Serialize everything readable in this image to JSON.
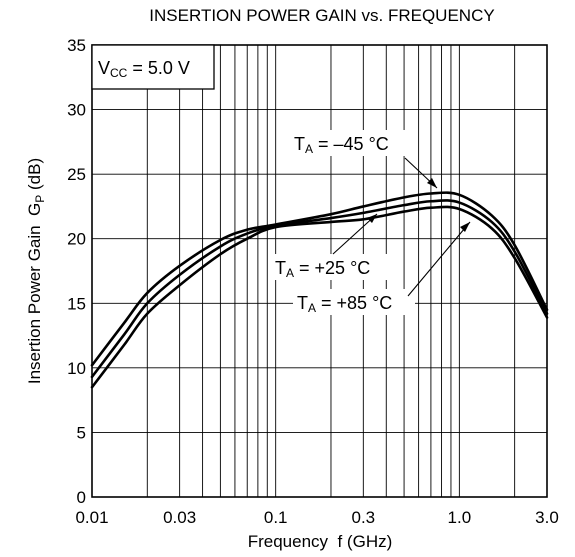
{
  "chart_data": {
    "type": "line",
    "title": "INSERTION POWER GAIN vs. FREQUENCY",
    "xlabel": "Frequency  f (GHz)",
    "ylabel": {
      "main": "Insertion Power Gain  G",
      "sub": "P",
      "unit": " (dB)"
    },
    "xscale": "log",
    "xlim": [
      0.01,
      3.0
    ],
    "ylim": [
      0,
      35
    ],
    "x_tick_values": [
      0.01,
      0.03,
      0.1,
      0.3,
      1.0,
      3.0
    ],
    "x_tick_labels": [
      "0.01",
      "0.03",
      "0.1",
      "0.3",
      "1.0",
      "3.0"
    ],
    "x_grid_values": [
      0.01,
      0.02,
      0.03,
      0.04,
      0.05,
      0.06,
      0.07,
      0.08,
      0.09,
      0.1,
      0.2,
      0.3,
      0.4,
      0.5,
      0.6,
      0.7,
      0.8,
      0.9,
      1.0,
      2.0,
      3.0
    ],
    "y_tick_values": [
      0,
      5,
      10,
      15,
      20,
      25,
      30,
      35
    ],
    "y_tick_labels": [
      "0",
      "5",
      "10",
      "15",
      "20",
      "25",
      "30",
      "35"
    ],
    "grid": true,
    "condition": {
      "pre": "V",
      "sub": "CC",
      "post": " = 5.0 V"
    },
    "series": [
      {
        "name": "TA = −45 °C",
        "label": {
          "pre": "T",
          "sub": "A",
          "post": " = –45 °C"
        },
        "x": [
          0.01,
          0.015,
          0.02,
          0.03,
          0.05,
          0.07,
          0.1,
          0.2,
          0.3,
          0.5,
          0.7,
          1.0,
          1.5,
          2.0,
          3.0
        ],
        "y": [
          10.2,
          13.5,
          15.8,
          17.9,
          19.9,
          20.7,
          21.1,
          21.9,
          22.5,
          23.2,
          23.5,
          23.4,
          21.8,
          19.5,
          14.5
        ]
      },
      {
        "name": "TA = +25 °C",
        "label": {
          "pre": "T",
          "sub": "A",
          "post": " = +25 °C"
        },
        "x": [
          0.01,
          0.015,
          0.02,
          0.03,
          0.05,
          0.07,
          0.1,
          0.2,
          0.3,
          0.5,
          0.7,
          1.0,
          1.5,
          2.0,
          3.0
        ],
        "y": [
          9.3,
          12.6,
          15.0,
          17.2,
          19.4,
          20.4,
          21.0,
          21.6,
          22.0,
          22.6,
          22.9,
          22.8,
          21.3,
          19.0,
          14.2
        ]
      },
      {
        "name": "TA = +85 °C",
        "label": {
          "pre": "T",
          "sub": "A",
          "post": " = +85 °C"
        },
        "x": [
          0.01,
          0.015,
          0.02,
          0.03,
          0.05,
          0.07,
          0.1,
          0.2,
          0.3,
          0.5,
          0.7,
          1.0,
          1.5,
          2.0,
          3.0
        ],
        "y": [
          8.5,
          11.8,
          14.2,
          16.4,
          18.8,
          20.0,
          20.9,
          21.3,
          21.5,
          22.1,
          22.4,
          22.3,
          20.8,
          18.5,
          13.9
        ]
      }
    ]
  }
}
